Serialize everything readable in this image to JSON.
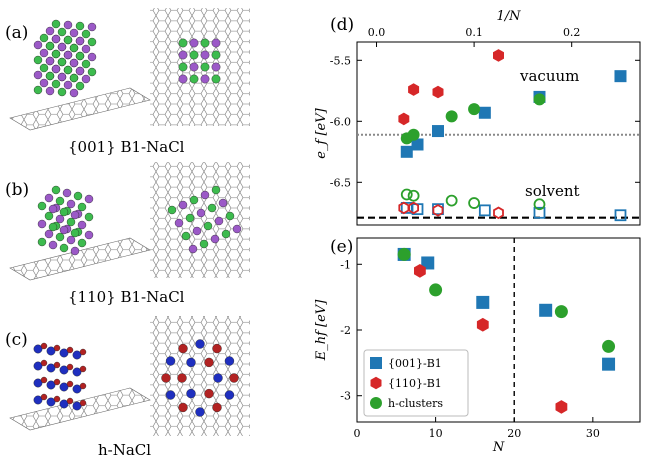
{
  "left_panels": {
    "a": {
      "label": "(a)",
      "caption": "{001} B1-NaCl"
    },
    "b": {
      "label": "(b)",
      "caption": "{110} B1-NaCl"
    },
    "c": {
      "label": "(c)",
      "caption": "h-NaCl"
    }
  },
  "colors": {
    "na_purple": "#9b59c7",
    "cl_green": "#3dbb4e",
    "blue_atom": "#1f2fbf",
    "red_atom": "#b22222",
    "series_001": "#1f77b4",
    "series_110": "#d62728",
    "series_h": "#2ca02c",
    "vacuum_line": "#888888",
    "solvent_line": "#000000"
  },
  "chart_data": [
    {
      "panel": "(d)",
      "type": "scatter",
      "xlabel": "1/N",
      "ylabel": "e_f [eV]",
      "xlim": [
        -0.02,
        0.27
      ],
      "ylim": [
        -6.85,
        -5.35
      ],
      "xticks": [
        "0.0",
        "0.1",
        "0.2"
      ],
      "xtick_values": [
        0.0,
        0.1,
        0.2
      ],
      "yticks": [
        "-5.5",
        "-6.0",
        "-6.5"
      ],
      "ytick_values": [
        -5.5,
        -6.0,
        -6.5
      ],
      "annotations": [
        "vacuum",
        "solvent"
      ],
      "reference_lines": [
        {
          "name": "vacuum",
          "y": -6.11,
          "style": "dotted"
        },
        {
          "name": "solvent",
          "y": -6.79,
          "style": "dashed"
        }
      ],
      "series": [
        {
          "key": "001",
          "marker": "square",
          "fill": "filled",
          "points": [
            [
              0.031,
              -6.25
            ],
            [
              0.042,
              -6.19
            ],
            [
              0.063,
              -6.08
            ],
            [
              0.111,
              -5.93
            ],
            [
              0.167,
              -5.8
            ],
            [
              0.25,
              -5.63
            ]
          ]
        },
        {
          "key": "001",
          "marker": "square",
          "fill": "open",
          "points": [
            [
              0.031,
              -6.71
            ],
            [
              0.042,
              -6.72
            ],
            [
              0.063,
              -6.72
            ],
            [
              0.111,
              -6.73
            ],
            [
              0.167,
              -6.75
            ],
            [
              0.25,
              -6.77
            ]
          ]
        },
        {
          "key": "110",
          "marker": "hexagon",
          "fill": "filled",
          "points": [
            [
              0.028,
              -5.98
            ],
            [
              0.038,
              -5.74
            ],
            [
              0.063,
              -5.76
            ],
            [
              0.125,
              -5.46
            ]
          ]
        },
        {
          "key": "110",
          "marker": "hexagon",
          "fill": "open",
          "points": [
            [
              0.028,
              -6.71
            ],
            [
              0.038,
              -6.71
            ],
            [
              0.063,
              -6.73
            ],
            [
              0.125,
              -6.75
            ]
          ]
        },
        {
          "key": "h",
          "marker": "circle",
          "fill": "filled",
          "points": [
            [
              0.031,
              -6.14
            ],
            [
              0.038,
              -6.11
            ],
            [
              0.077,
              -5.96
            ],
            [
              0.1,
              -5.9
            ],
            [
              0.167,
              -5.82
            ]
          ]
        },
        {
          "key": "h",
          "marker": "circle",
          "fill": "open",
          "points": [
            [
              0.031,
              -6.6
            ],
            [
              0.038,
              -6.61
            ],
            [
              0.077,
              -6.65
            ],
            [
              0.1,
              -6.67
            ],
            [
              0.167,
              -6.68
            ]
          ]
        }
      ]
    },
    {
      "panel": "(e)",
      "type": "scatter",
      "xlabel": "N",
      "ylabel": "E_hf [eV]",
      "xlim": [
        0,
        36
      ],
      "ylim": [
        -3.4,
        -0.6
      ],
      "xticks": [
        "0",
        "10",
        "20",
        "30"
      ],
      "xtick_values": [
        0,
        10,
        20,
        30
      ],
      "yticks": [
        "-1",
        "-2",
        "-3"
      ],
      "ytick_values": [
        -1,
        -2,
        -3
      ],
      "reference_lines": [
        {
          "x": 20,
          "style": "dashed"
        }
      ],
      "legend_position": "bottom-left",
      "series": [
        {
          "key": "001",
          "name": "{001}-B1",
          "marker": "square",
          "points": [
            [
              6,
              -0.85
            ],
            [
              9,
              -0.98
            ],
            [
              16,
              -1.58
            ],
            [
              24,
              -1.7
            ],
            [
              32,
              -2.52
            ]
          ]
        },
        {
          "key": "110",
          "name": "{110}-B1",
          "marker": "hexagon",
          "points": [
            [
              8,
              -1.1
            ],
            [
              16,
              -1.92
            ],
            [
              26,
              -3.17
            ]
          ]
        },
        {
          "key": "h",
          "name": "h-clusters",
          "marker": "circle",
          "points": [
            [
              6,
              -0.85
            ],
            [
              10,
              -1.39
            ],
            [
              26,
              -1.72
            ],
            [
              32,
              -2.25
            ]
          ]
        }
      ]
    }
  ]
}
